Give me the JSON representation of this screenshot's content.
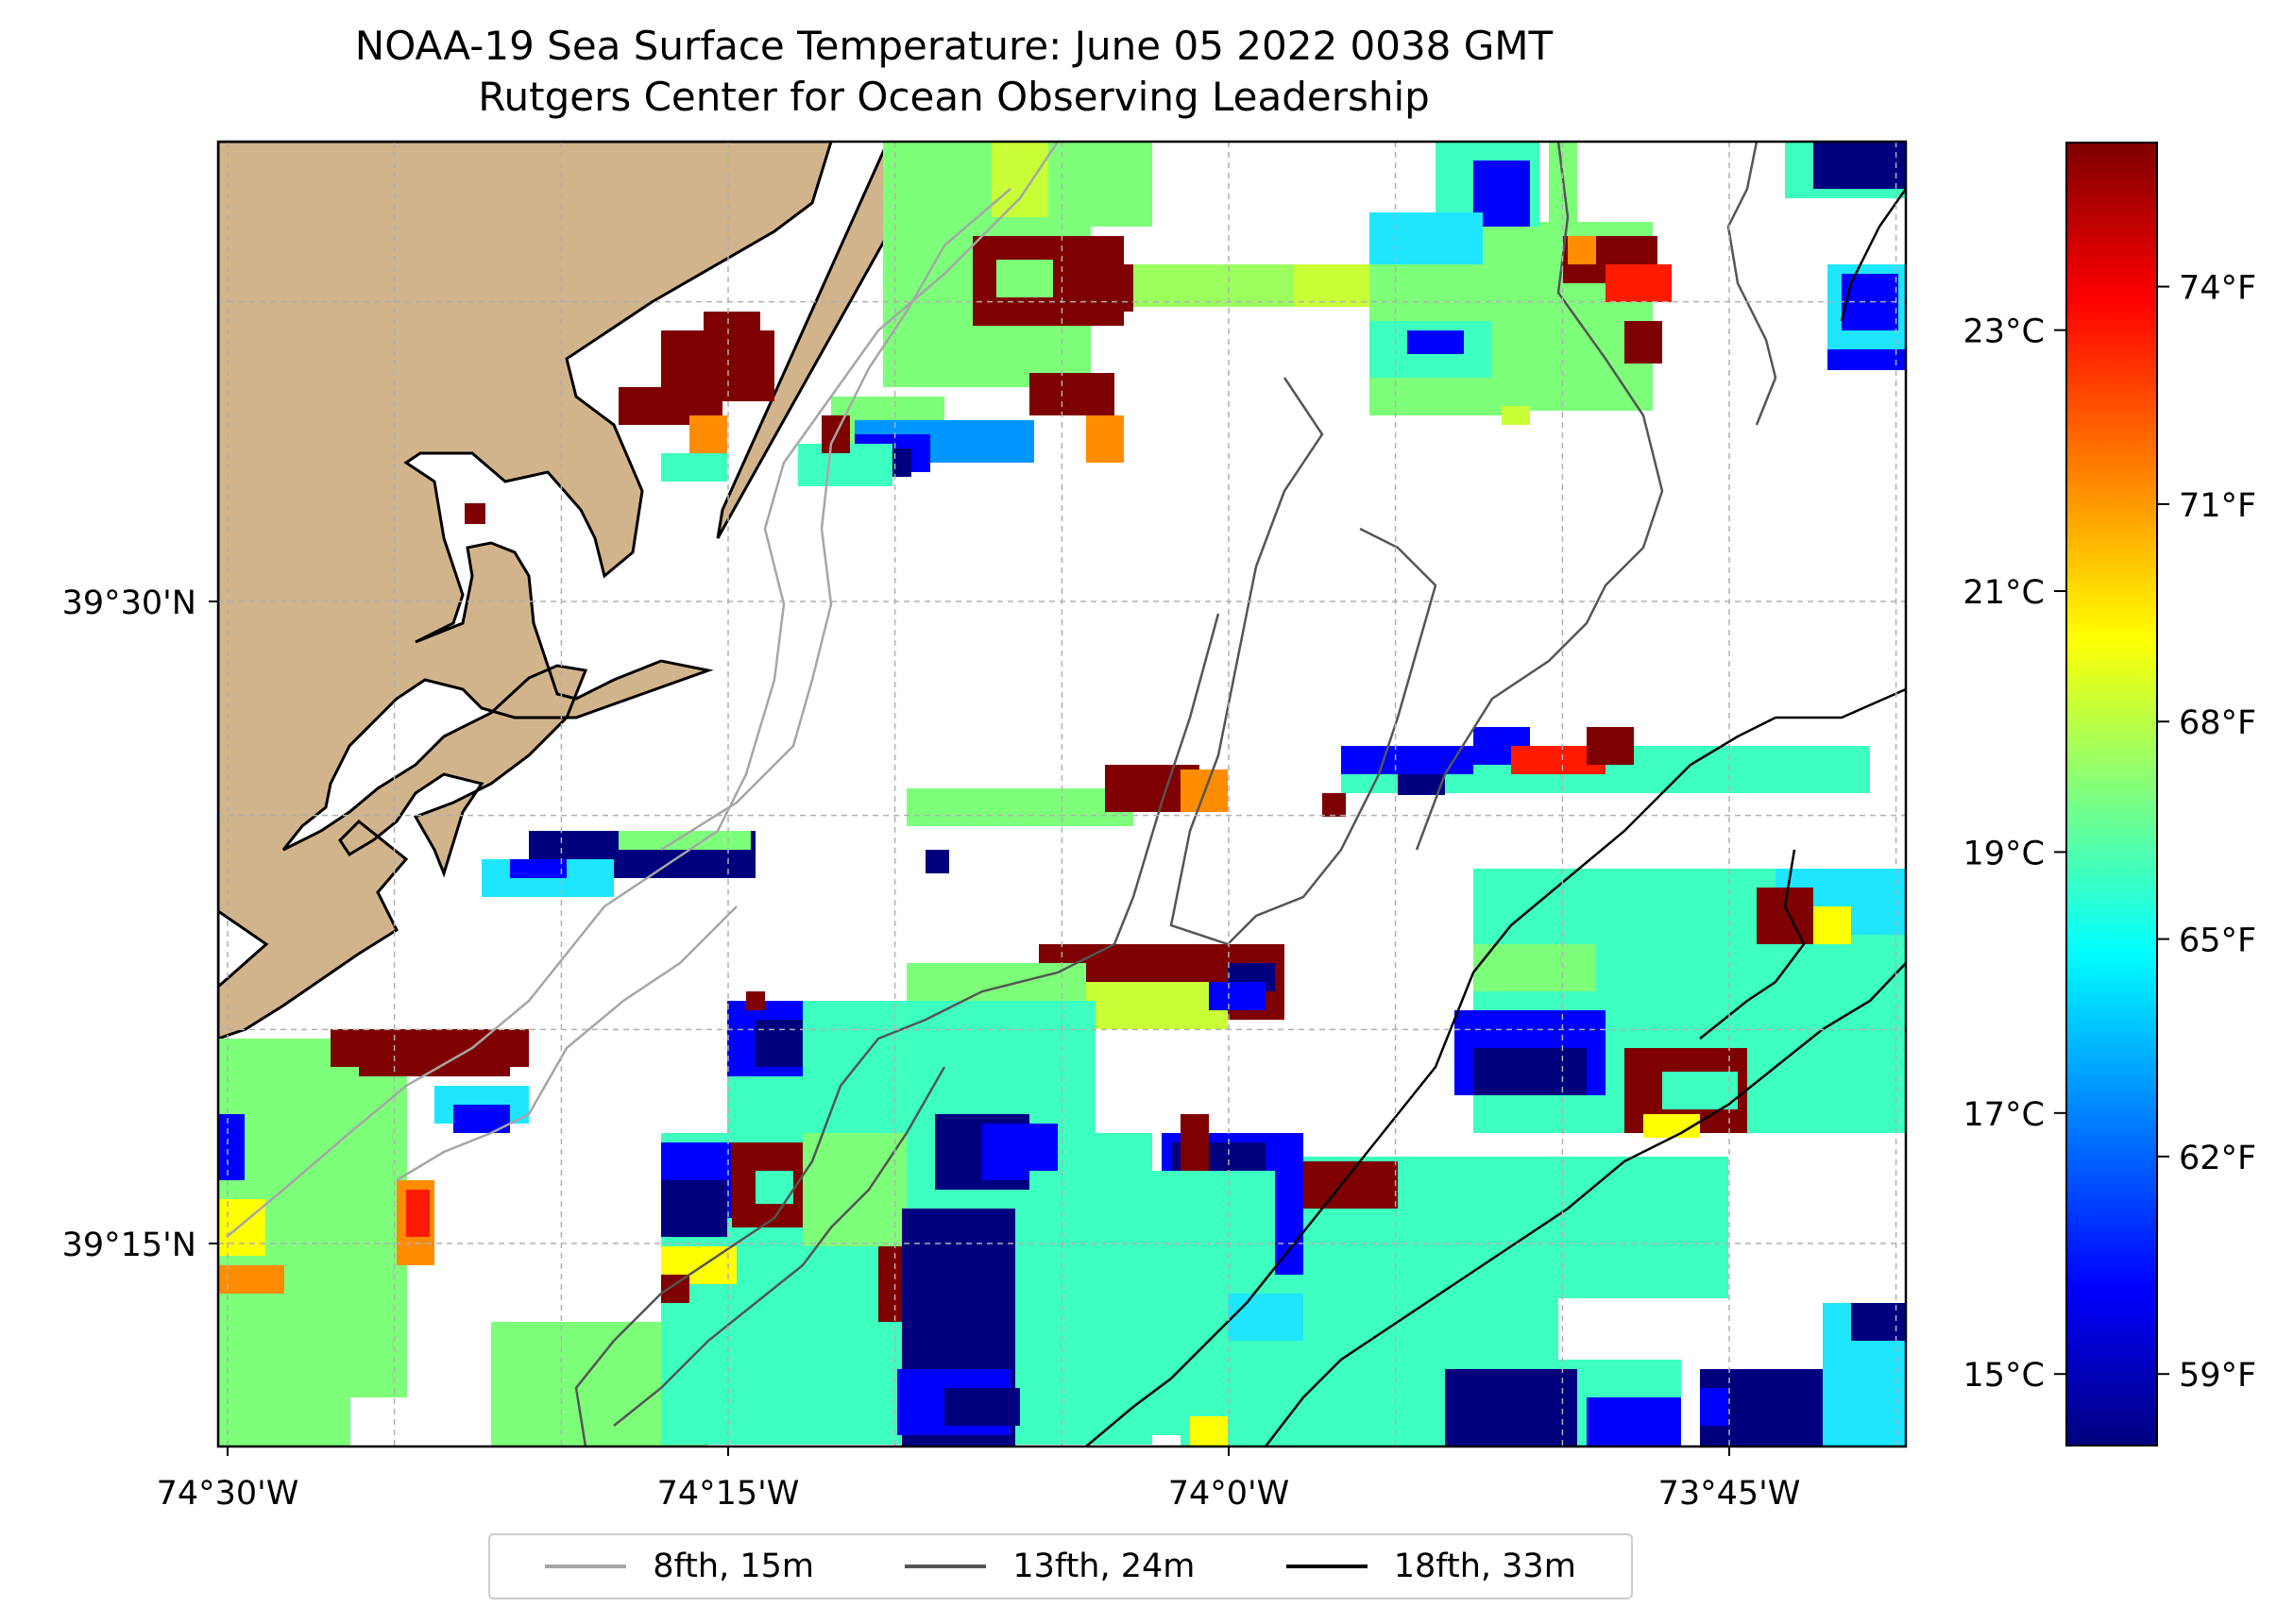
{
  "title": {
    "line1": "NOAA-19 Sea Surface Temperature: June 05 2022 0038 GMT",
    "line2": "Rutgers Center for Ocean Observing Leadership"
  },
  "axes": {
    "x_ticks": [
      {
        "lon": -74.5,
        "label": "74°30'W"
      },
      {
        "lon": -74.25,
        "label": "74°15'W"
      },
      {
        "lon": -74.0,
        "label": "74°0'W"
      },
      {
        "lon": -73.75,
        "label": "73°45'W"
      }
    ],
    "y_ticks": [
      {
        "lat": 39.5,
        "label": "39°30'N"
      },
      {
        "lat": 39.25,
        "label": "39°15'N"
      }
    ]
  },
  "legend": [
    {
      "label": "8fth, 15m",
      "color": "#a6a6a6"
    },
    {
      "label": "13fth, 24m",
      "color": "#555555"
    },
    {
      "label": "18fth, 33m",
      "color": "#000000"
    }
  ],
  "colorbar": {
    "celsius_ticks": [
      {
        "value": 23,
        "label": "23°C"
      },
      {
        "value": 21,
        "label": "21°C"
      },
      {
        "value": 19,
        "label": "19°C"
      },
      {
        "value": 17,
        "label": "17°C"
      },
      {
        "value": 15,
        "label": "15°C"
      }
    ],
    "fahrenheit_ticks": [
      {
        "value": 74,
        "label": "74°F"
      },
      {
        "value": 71,
        "label": "71°F"
      },
      {
        "value": 68,
        "label": "68°F"
      },
      {
        "value": 65,
        "label": "65°F"
      },
      {
        "value": 62,
        "label": "62°F"
      },
      {
        "value": 59,
        "label": "59°F"
      }
    ],
    "range_f": [
      58,
      76
    ]
  },
  "colors": {
    "land": "#d2b48c",
    "grid": "#b0b0b0"
  }
}
